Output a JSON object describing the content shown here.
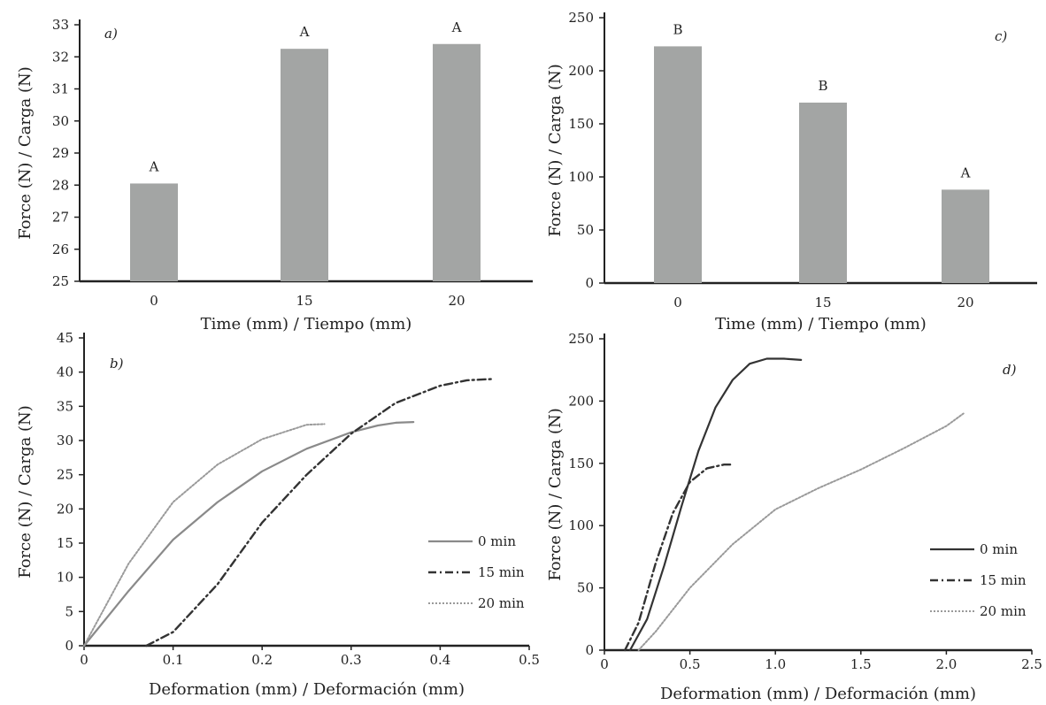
{
  "chart_data": [
    {
      "id": "a",
      "type": "bar",
      "panel_label": "a)",
      "categories": [
        "0",
        "15",
        "20"
      ],
      "values": [
        28.05,
        32.25,
        32.4
      ],
      "bar_labels": [
        "A",
        "A",
        "A"
      ],
      "xlabel": "Time (mm) / Tiempo (mm)",
      "ylabel": "Force (N) / Carga (N)",
      "ylim": [
        25,
        33
      ],
      "yticks": [
        "25",
        "26",
        "27",
        "28",
        "29",
        "30",
        "31",
        "32",
        "33"
      ],
      "bar_color": "#a3a5a4"
    },
    {
      "id": "c",
      "type": "bar",
      "panel_label": "c)",
      "categories": [
        "0",
        "15",
        "20"
      ],
      "values": [
        223,
        170,
        88
      ],
      "bar_labels": [
        "B",
        "B",
        "A"
      ],
      "xlabel": "Time (mm) / Tiempo (mm)",
      "ylabel": "Force (N) / Carga (N)",
      "ylim": [
        0,
        250
      ],
      "yticks": [
        "0",
        "50",
        "100",
        "150",
        "200",
        "250"
      ],
      "bar_color": "#a3a5a4"
    },
    {
      "id": "b",
      "type": "line",
      "panel_label": "b)",
      "xlabel": "Deformation (mm) / Deformación (mm)",
      "ylabel": "Force (N) / Carga (N)",
      "xlim": [
        0,
        0.5
      ],
      "ylim": [
        0,
        45
      ],
      "xticks": [
        "0",
        "0.1",
        "0.2",
        "0.3",
        "0.4",
        "0.5"
      ],
      "yticks": [
        "0",
        "5",
        "10",
        "15",
        "20",
        "25",
        "30",
        "35",
        "40",
        "45"
      ],
      "legend_position": "center-right",
      "series": [
        {
          "name": "0 min",
          "style": "solid",
          "color": "#8a8a8a",
          "x": [
            0,
            0.05,
            0.1,
            0.15,
            0.2,
            0.25,
            0.3,
            0.33,
            0.35,
            0.37
          ],
          "y": [
            0,
            8,
            15.5,
            21,
            25.5,
            28.8,
            31.2,
            32.2,
            32.6,
            32.7
          ]
        },
        {
          "name": "15 min",
          "style": "dashdot",
          "color": "#333333",
          "x": [
            0.07,
            0.1,
            0.15,
            0.2,
            0.25,
            0.3,
            0.35,
            0.4,
            0.43,
            0.46
          ],
          "y": [
            0,
            2,
            9,
            18,
            25,
            31,
            35.5,
            38,
            38.8,
            39
          ]
        },
        {
          "name": "20 min",
          "style": "dotted",
          "color": "#9a9a9a",
          "x": [
            0,
            0.05,
            0.1,
            0.15,
            0.2,
            0.25,
            0.27
          ],
          "y": [
            0,
            12,
            21,
            26.5,
            30.2,
            32.3,
            32.4
          ]
        }
      ]
    },
    {
      "id": "d",
      "type": "line",
      "panel_label": "d)",
      "xlabel": "Deformation (mm) / Deformación (mm)",
      "ylabel": "Force (N) / Carga (N)",
      "xlim": [
        0,
        2.5
      ],
      "ylim": [
        0,
        250
      ],
      "xticks": [
        "0",
        "0.5",
        "1.0",
        "1.5",
        "2.0",
        "2.5"
      ],
      "yticks": [
        "0",
        "50",
        "100",
        "150",
        "200",
        "250"
      ],
      "legend_position": "bottom-right",
      "series": [
        {
          "name": "0 min",
          "style": "solid",
          "color": "#333333",
          "x": [
            0.15,
            0.25,
            0.35,
            0.45,
            0.55,
            0.65,
            0.75,
            0.85,
            0.95,
            1.05,
            1.15
          ],
          "y": [
            0,
            25,
            68,
            115,
            160,
            195,
            217,
            230,
            234,
            234,
            233
          ]
        },
        {
          "name": "15 min",
          "style": "dashdot",
          "color": "#333333",
          "x": [
            0.12,
            0.2,
            0.3,
            0.4,
            0.5,
            0.6,
            0.7,
            0.75
          ],
          "y": [
            0,
            22,
            70,
            110,
            135,
            146,
            149,
            149
          ]
        },
        {
          "name": "20 min",
          "style": "dotted",
          "color": "#9a9a9a",
          "x": [
            0.2,
            0.3,
            0.5,
            0.75,
            1.0,
            1.25,
            1.5,
            1.75,
            2.0,
            2.1
          ],
          "y": [
            0,
            15,
            50,
            85,
            113,
            130,
            145,
            162,
            180,
            190
          ]
        }
      ]
    }
  ]
}
